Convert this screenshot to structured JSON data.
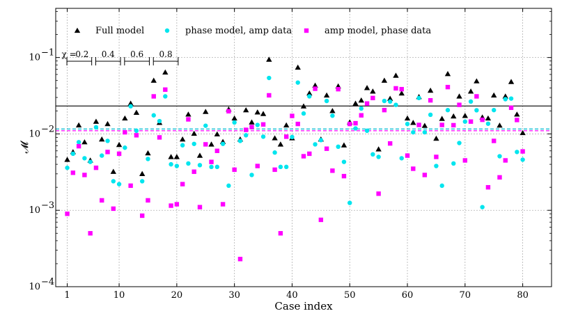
{
  "chart_data": {
    "type": "scatter",
    "title": "",
    "xlabel": "Case index",
    "ylabel": "𝓜",
    "xlim": [
      -1,
      85
    ],
    "ylim": [
      0.0001,
      0.44
    ],
    "yscale": "log",
    "grid": true,
    "legend_position": "top",
    "x_ticks": [
      1,
      10,
      20,
      30,
      40,
      50,
      60,
      70,
      80
    ],
    "x_tick_labels": [
      "1",
      "10",
      "20",
      "30",
      "40",
      "50",
      "60",
      "70",
      "80"
    ],
    "y_ticks": [
      0.0001,
      0.001,
      0.01,
      0.1
    ],
    "y_tick_labels": [
      "10",
      "10",
      "10",
      "10"
    ],
    "y_tick_exponents": [
      "−4",
      "−3",
      "−2",
      "−1"
    ],
    "x": [
      1,
      2,
      3,
      4,
      5,
      6,
      7,
      8,
      9,
      10,
      11,
      12,
      13,
      14,
      15,
      16,
      17,
      18,
      19,
      20,
      21,
      22,
      23,
      24,
      25,
      26,
      27,
      28,
      29,
      30,
      31,
      32,
      33,
      34,
      35,
      36,
      37,
      38,
      39,
      40,
      41,
      42,
      43,
      44,
      45,
      46,
      47,
      48,
      49,
      50,
      51,
      52,
      53,
      54,
      55,
      56,
      57,
      58,
      59,
      60,
      61,
      62,
      63,
      64,
      65,
      66,
      67,
      68,
      69,
      70,
      71,
      72,
      73,
      74,
      75,
      76,
      77,
      78,
      79,
      80
    ],
    "series": [
      {
        "name": "Full model",
        "color": "#000000",
        "marker": "triangle",
        "values": [
          0.0046,
          0.0058,
          0.013,
          0.0078,
          0.0045,
          0.0145,
          0.0085,
          0.0135,
          0.0032,
          0.0072,
          0.016,
          0.025,
          0.019,
          0.003,
          0.0056,
          0.05,
          0.014,
          0.064,
          0.005,
          0.005,
          0.0085,
          0.018,
          0.0101,
          0.0052,
          0.0195,
          0.0073,
          0.0099,
          0.0079,
          0.021,
          0.016,
          0.0085,
          0.0205,
          0.0142,
          0.0192,
          0.0183,
          0.094,
          0.0088,
          0.0073,
          0.013,
          0.0088,
          0.074,
          0.023,
          0.034,
          0.043,
          0.0085,
          0.032,
          0.02,
          0.042,
          0.0071,
          0.0142,
          0.025,
          0.0275,
          0.04,
          0.036,
          0.0063,
          0.05,
          0.029,
          0.058,
          0.034,
          0.016,
          0.014,
          0.0305,
          0.0128,
          0.037,
          0.0087,
          0.0158,
          0.061,
          0.017,
          0.031,
          0.0173,
          0.036,
          0.049,
          0.0165,
          0.016,
          0.032,
          0.0129,
          0.031,
          0.048,
          0.018,
          0.0103
        ]
      },
      {
        "name": "phase model, amp data",
        "color": "#00e5ee",
        "marker": "circle",
        "values": [
          0.0036,
          0.0055,
          0.0078,
          0.0048,
          0.0043,
          0.0122,
          0.0052,
          0.0081,
          0.0024,
          0.0022,
          0.0066,
          0.023,
          0.011,
          0.0024,
          0.0047,
          0.0175,
          0.0147,
          0.031,
          0.004,
          0.0038,
          0.0071,
          0.0041,
          0.0074,
          0.0039,
          0.0128,
          0.0037,
          0.0037,
          0.0074,
          0.0021,
          0.0141,
          0.0081,
          0.0096,
          0.0029,
          0.0131,
          0.0092,
          0.054,
          0.0057,
          0.0037,
          0.0037,
          0.0091,
          0.047,
          0.0185,
          0.031,
          0.0073,
          0.0083,
          0.027,
          0.0173,
          0.0068,
          0.0043,
          0.00125,
          0.0118,
          0.0215,
          0.011,
          0.0054,
          0.005,
          0.027,
          0.0265,
          0.024,
          0.0048,
          0.0135,
          0.0105,
          0.0295,
          0.0105,
          0.0178,
          0.0038,
          0.0021,
          0.0205,
          0.0041,
          0.0076,
          0.0145,
          0.0265,
          0.0204,
          0.0011,
          0.0136,
          0.0205,
          0.0051,
          0.0285,
          0.029,
          0.0058,
          0.0046
        ]
      },
      {
        "name": "amp model, phase data",
        "color": "#ff00ff",
        "marker": "square",
        "values": [
          0.0009,
          0.0031,
          0.0069,
          0.0029,
          0.0005,
          0.0036,
          0.00135,
          0.0058,
          0.00105,
          0.0055,
          0.0105,
          0.0021,
          0.0096,
          0.00085,
          0.00135,
          0.031,
          0.009,
          0.038,
          0.00115,
          0.0012,
          0.0022,
          0.0155,
          0.0032,
          0.0011,
          0.0073,
          0.0043,
          0.006,
          0.0012,
          0.0198,
          0.0034,
          0.00023,
          0.0113,
          0.0123,
          0.0038,
          0.0133,
          0.032,
          0.0034,
          0.0005,
          0.0092,
          0.0172,
          0.0135,
          0.0051,
          0.0055,
          0.039,
          0.00075,
          0.0064,
          0.0033,
          0.0385,
          0.0028,
          0.0135,
          0.0138,
          0.0175,
          0.025,
          0.0295,
          0.00165,
          0.0205,
          0.0075,
          0.0395,
          0.0385,
          0.0052,
          0.0035,
          0.0131,
          0.0029,
          0.0275,
          0.005,
          0.0131,
          0.041,
          0.013,
          0.024,
          0.0045,
          0.0145,
          0.031,
          0.0153,
          0.002,
          0.0081,
          0.0027,
          0.0045,
          0.022,
          0.0152,
          0.0059
        ]
      }
    ],
    "reference_lines": [
      {
        "value": 0.0232,
        "color": "#000000",
        "style": "solid"
      },
      {
        "value": 0.0116,
        "color": "#00bcd4",
        "style": "dashed"
      },
      {
        "value": 0.011,
        "color": "#ff00ff",
        "style": "dashed"
      }
    ],
    "chi_groups": {
      "symbol": "χ =",
      "labels": [
        "0.2",
        "0.4",
        "0.6",
        "0.8"
      ],
      "ranges": [
        [
          1,
          5
        ],
        [
          6,
          10
        ],
        [
          11,
          15
        ],
        [
          16,
          20
        ]
      ]
    }
  }
}
